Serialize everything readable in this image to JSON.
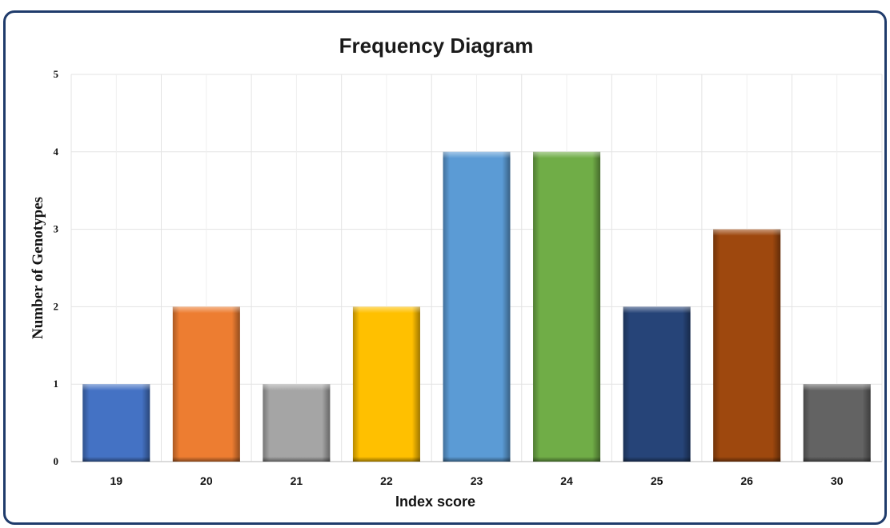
{
  "chart_data": {
    "type": "bar",
    "title": "Frequency Diagram",
    "xlabel": "Index score",
    "ylabel": "Number of Genotypes",
    "categories": [
      "19",
      "20",
      "21",
      "22",
      "23",
      "24",
      "25",
      "26",
      "30"
    ],
    "values": [
      1,
      2,
      1,
      2,
      4,
      4,
      2,
      3,
      1
    ],
    "yticks": [
      "0",
      "1",
      "2",
      "3",
      "4",
      "5"
    ],
    "ylim": [
      0,
      5
    ],
    "grid": true,
    "legend": "none",
    "bar_colors": [
      "#4472c4",
      "#ed7d31",
      "#a5a5a5",
      "#ffc000",
      "#5b9bd5",
      "#70ad47",
      "#264478",
      "#9e480e",
      "#636363"
    ],
    "grid_color": "#e3e3e3",
    "frame_color": "#1f3b6b"
  }
}
